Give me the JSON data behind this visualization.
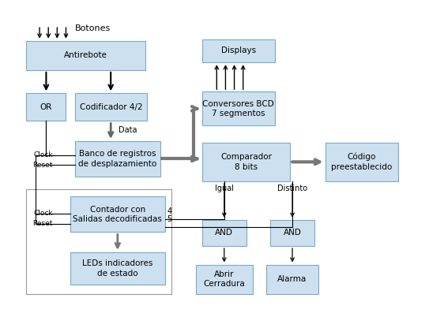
{
  "bg_color": "#ffffff",
  "box_fill": "#cce0f0",
  "box_edge": "#7aaac8",
  "text_color": "#000000",
  "figsize": [
    5.62,
    3.97
  ],
  "dpi": 100,
  "boxes": {
    "antirebote": [
      0.055,
      0.78,
      0.27,
      0.095
    ],
    "or": [
      0.055,
      0.615,
      0.09,
      0.09
    ],
    "codificador": [
      0.165,
      0.615,
      0.165,
      0.09
    ],
    "banco": [
      0.165,
      0.435,
      0.195,
      0.115
    ],
    "displays": [
      0.455,
      0.805,
      0.165,
      0.075
    ],
    "conversores": [
      0.455,
      0.6,
      0.165,
      0.11
    ],
    "comparador": [
      0.455,
      0.42,
      0.2,
      0.125
    ],
    "codigo": [
      0.735,
      0.42,
      0.165,
      0.125
    ],
    "contador": [
      0.155,
      0.255,
      0.215,
      0.115
    ],
    "leds": [
      0.155,
      0.085,
      0.215,
      0.105
    ],
    "and1": [
      0.455,
      0.21,
      0.1,
      0.085
    ],
    "and2": [
      0.61,
      0.21,
      0.1,
      0.085
    ],
    "abrir": [
      0.44,
      0.055,
      0.13,
      0.095
    ],
    "alarma": [
      0.6,
      0.055,
      0.12,
      0.095
    ]
  },
  "labels": {
    "antirebote": "Antirebote",
    "or": "OR",
    "codificador": "Codificador 4/2",
    "banco": "Banco de registros\nde desplazamiento",
    "displays": "Displays",
    "conversores": "Conversores BCD\n7 segmentos",
    "comparador": "Comparador\n8 bits",
    "codigo": "Código\npreestablecido",
    "contador": "Contador con\nSalidas decodificadas",
    "leds": "LEDs indicadores\nde estado",
    "and1": "AND",
    "and2": "AND",
    "abrir": "Abrir\nCerradura",
    "alarma": "Alarma"
  }
}
